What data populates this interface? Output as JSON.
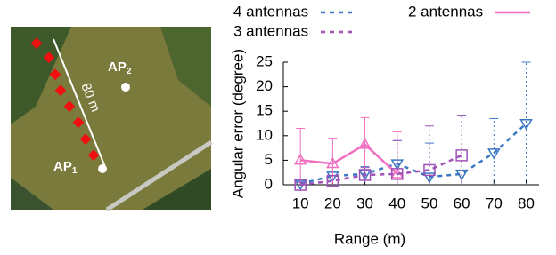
{
  "map": {
    "labels": [
      {
        "text": "AP",
        "sub": "2"
      },
      {
        "text": "AP",
        "sub": "1"
      }
    ],
    "distance": "80 m"
  },
  "chart_data": {
    "type": "line",
    "x": [
      10,
      20,
      30,
      40,
      50,
      60,
      70,
      80
    ],
    "xlim": [
      4.7,
      84
    ],
    "ylim": [
      0,
      25
    ],
    "xticks": [
      10,
      20,
      30,
      40,
      50,
      60,
      70,
      80
    ],
    "yticks": [
      0,
      5,
      10,
      15,
      20,
      25
    ],
    "xlabel": "Range (m)",
    "ylabel": "Angular error (degree)",
    "series": [
      {
        "name": "4 antennas",
        "color": "#3a78c2",
        "dash": true,
        "marker": "tri-down",
        "values": [
          0.2,
          1.8,
          2.2,
          4.3,
          1.6,
          2.2,
          6.5,
          12.5
        ],
        "errors": [
          0.5,
          1,
          1.5,
          4.7,
          6.9,
          12,
          7,
          12.5
        ]
      },
      {
        "name": "2 antennas",
        "color": "#f06fc0",
        "dash": false,
        "marker": "tri-up",
        "values": [
          5,
          4.3,
          8.2,
          2.2,
          null,
          null,
          null,
          null
        ],
        "errors": [
          6.5,
          5.2,
          5.5,
          8.6,
          null,
          null,
          null,
          null
        ]
      },
      {
        "name": "3 antennas",
        "color": "#a052b8",
        "dash": true,
        "marker": "square",
        "values": [
          0,
          0.8,
          2,
          2.2,
          3,
          6,
          null,
          null
        ],
        "errors": [
          0.5,
          1,
          1.5,
          6.8,
          9,
          8.2,
          null,
          null
        ]
      }
    ]
  }
}
